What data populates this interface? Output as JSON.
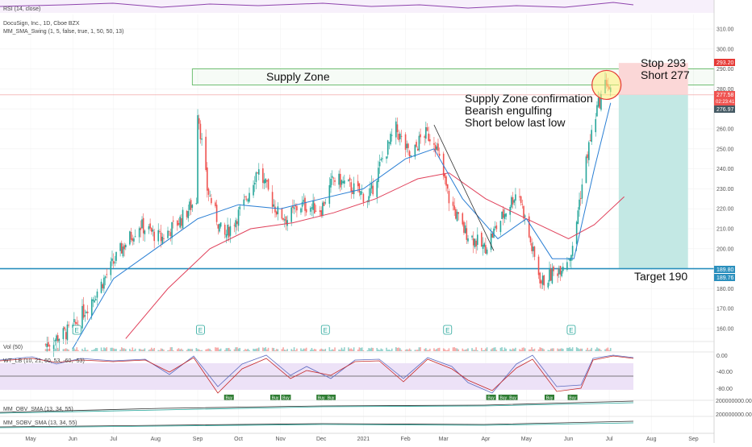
{
  "panes": {
    "rsi_label": "RSI (14, close)",
    "symbol_label": "DocuSign, Inc., 1D, Cboe BZX",
    "indicator_label": "MM_SMA_Swing (1, 5, false, true, 1, 50, 50, 13)",
    "vol_label": "Vol (50)",
    "wt_label": "WT_LB (10, 21, 60, 53, -60, -53)",
    "obv_label": "MM_OBV_SMA (13, 34, 55)",
    "sobv_label": "MM_SOBV_SMA (13, 34, 55)"
  },
  "annotations": {
    "supply_zone": "Supply Zone",
    "confirmation_1": "Supply Zone confirmation",
    "confirmation_2": "Bearish engulfing",
    "confirmation_3": "Short below last low",
    "stop": "Stop 293",
    "short": "Short 277",
    "target": "Target 190"
  },
  "price_badges": {
    "stop": "293.20",
    "last": "277.58",
    "countdown": "02:23:41",
    "sma": "276.97",
    "target_a": "189.80",
    "target_b": "189.76"
  },
  "wt_axis": [
    "0.00",
    "-40.00",
    "-80.00"
  ],
  "obv_axis": [
    "200000000.00",
    "200000000.00"
  ],
  "earnings_marker": "E",
  "buy_marker": "Buy",
  "chart_data": {
    "type": "candlestick",
    "title": "DocuSign, Inc., 1D, Cboe BZX",
    "ylim": [
      150,
      315
    ],
    "y_ticks": [
      160,
      170,
      180,
      190,
      200,
      210,
      220,
      230,
      240,
      250,
      260,
      270,
      280,
      290,
      300,
      310
    ],
    "x_ticks": [
      "May",
      "Jun",
      "Jul",
      "Aug",
      "Sep",
      "Oct",
      "Nov",
      "Dec",
      "2021",
      "Feb",
      "Mar",
      "Apr",
      "May",
      "Jun",
      "Jul",
      "Aug",
      "Sep"
    ],
    "supply_zone": [
      282,
      290
    ],
    "target_level": 190,
    "stop_level": 293,
    "entry_level": 277,
    "price_path": [
      [
        "2020-05-12",
        152
      ],
      [
        "2020-06-01",
        160
      ],
      [
        "2020-06-20",
        180
      ],
      [
        "2020-07-07",
        200
      ],
      [
        "2020-07-20",
        212
      ],
      [
        "2020-08-05",
        205
      ],
      [
        "2020-08-20",
        215
      ],
      [
        "2020-08-31",
        225
      ],
      [
        "2020-09-01",
        270
      ],
      [
        "2020-09-08",
        230
      ],
      [
        "2020-09-20",
        205
      ],
      [
        "2020-10-05",
        222
      ],
      [
        "2020-10-15",
        240
      ],
      [
        "2020-10-30",
        218
      ],
      [
        "2020-11-06",
        215
      ],
      [
        "2020-11-15",
        222
      ],
      [
        "2020-12-01",
        220
      ],
      [
        "2020-12-10",
        235
      ],
      [
        "2020-12-20",
        232
      ],
      [
        "2021-01-05",
        225
      ],
      [
        "2021-01-15",
        245
      ],
      [
        "2021-01-25",
        260
      ],
      [
        "2021-02-05",
        245
      ],
      [
        "2021-02-14",
        258
      ],
      [
        "2021-02-22",
        255
      ],
      [
        "2021-03-05",
        225
      ],
      [
        "2021-03-15",
        210
      ],
      [
        "2021-03-31",
        200
      ],
      [
        "2021-04-15",
        218
      ],
      [
        "2021-04-25",
        230
      ],
      [
        "2021-05-05",
        200
      ],
      [
        "2021-05-12",
        183
      ],
      [
        "2021-05-25",
        190
      ],
      [
        "2021-06-05",
        200
      ],
      [
        "2021-06-08",
        220
      ],
      [
        "2021-06-15",
        248
      ],
      [
        "2021-06-22",
        270
      ],
      [
        "2021-06-29",
        284
      ],
      [
        "2021-07-02",
        278
      ]
    ],
    "sma_fast": [
      [
        "2020-06-01",
        150
      ],
      [
        "2020-07-01",
        185
      ],
      [
        "2020-08-01",
        200
      ],
      [
        "2020-09-01",
        215
      ],
      [
        "2020-10-01",
        222
      ],
      [
        "2020-11-01",
        220
      ],
      [
        "2020-12-01",
        225
      ],
      [
        "2021-01-01",
        230
      ],
      [
        "2021-02-01",
        245
      ],
      [
        "2021-02-22",
        250
      ],
      [
        "2021-03-15",
        225
      ],
      [
        "2021-04-10",
        205
      ],
      [
        "2021-05-01",
        215
      ],
      [
        "2021-05-20",
        195
      ],
      [
        "2021-06-05",
        195
      ],
      [
        "2021-06-20",
        240
      ],
      [
        "2021-07-02",
        273
      ]
    ],
    "sma_slow": [
      [
        "2020-07-10",
        155
      ],
      [
        "2020-08-10",
        180
      ],
      [
        "2020-09-10",
        200
      ],
      [
        "2020-10-10",
        210
      ],
      [
        "2020-11-10",
        213
      ],
      [
        "2020-12-10",
        218
      ],
      [
        "2021-01-10",
        225
      ],
      [
        "2021-02-10",
        235
      ],
      [
        "2021-03-05",
        238
      ],
      [
        "2021-04-01",
        225
      ],
      [
        "2021-05-01",
        215
      ],
      [
        "2021-06-01",
        205
      ],
      [
        "2021-06-20",
        212
      ],
      [
        "2021-07-12",
        226
      ]
    ],
    "earnings_dates": [
      "2020-06-04",
      "2020-09-03",
      "2020-12-04",
      "2021-03-04",
      "2021-06-03"
    ]
  },
  "colors": {
    "up": "#26a69a",
    "down": "#ef5350",
    "sma_fast": "#2a7fd4",
    "sma_slow": "#e0405a",
    "target_line": "#2a8fbd",
    "zone": "#4caf50",
    "wt_fill": "#ede2f7"
  }
}
